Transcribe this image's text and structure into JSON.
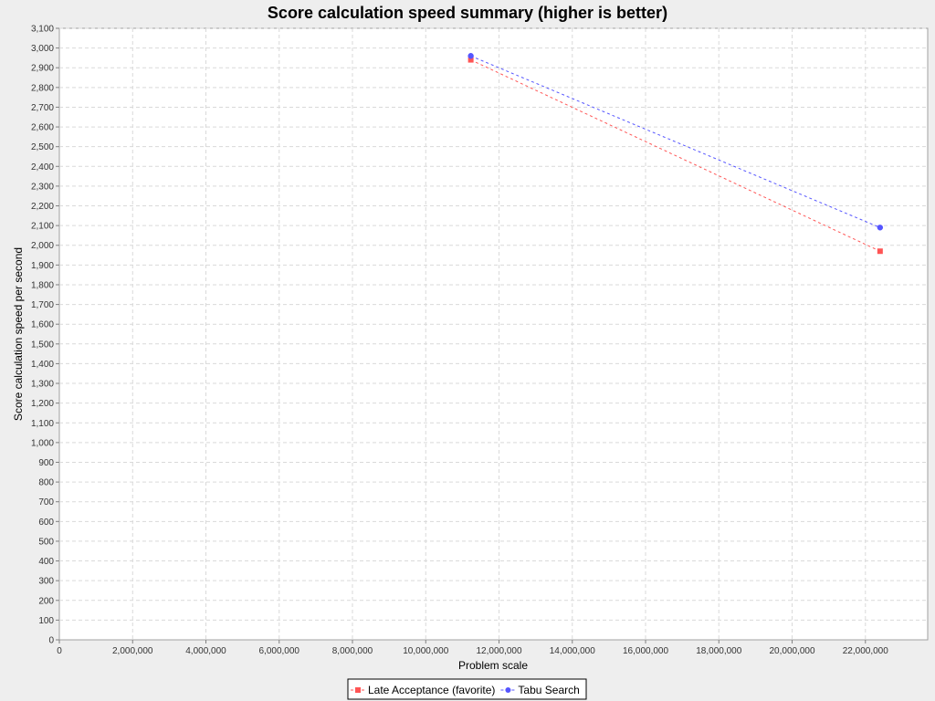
{
  "chart_data": {
    "type": "line",
    "title": "Score calculation speed summary (higher is better)",
    "xlabel": "Problem scale",
    "ylabel": "Score calculation speed per second",
    "xlim": [
      0,
      23700000
    ],
    "ylim": [
      0,
      3100
    ],
    "x_ticks": [
      0,
      2000000,
      4000000,
      6000000,
      8000000,
      10000000,
      12000000,
      14000000,
      16000000,
      18000000,
      20000000,
      22000000
    ],
    "x_tick_labels": [
      "0",
      "2,000,000",
      "4,000,000",
      "6,000,000",
      "8,000,000",
      "10,000,000",
      "12,000,000",
      "14,000,000",
      "16,000,000",
      "18,000,000",
      "20,000,000",
      "22,000,000"
    ],
    "y_ticks": [
      0,
      100,
      200,
      300,
      400,
      500,
      600,
      700,
      800,
      900,
      1000,
      1100,
      1200,
      1300,
      1400,
      1500,
      1600,
      1700,
      1800,
      1900,
      2000,
      2100,
      2200,
      2300,
      2400,
      2500,
      2600,
      2700,
      2800,
      2900,
      3000,
      3100
    ],
    "y_tick_labels": [
      "0",
      "100",
      "200",
      "300",
      "400",
      "500",
      "600",
      "700",
      "800",
      "900",
      "1,000",
      "1,100",
      "1,200",
      "1,300",
      "1,400",
      "1,500",
      "1,600",
      "1,700",
      "1,800",
      "1,900",
      "2,000",
      "2,100",
      "2,200",
      "2,300",
      "2,400",
      "2,500",
      "2,600",
      "2,700",
      "2,800",
      "2,900",
      "3,000",
      "3,100"
    ],
    "grid": true,
    "legend_position": "bottom",
    "series": [
      {
        "name": "Late Acceptance (favorite)",
        "color": "#ff5555",
        "marker": "square",
        "line_style": "dashed",
        "points": [
          {
            "x": 11230000,
            "y": 2940
          },
          {
            "x": 22400000,
            "y": 1970
          }
        ]
      },
      {
        "name": "Tabu Search",
        "color": "#5555ff",
        "marker": "circle",
        "line_style": "dashed",
        "points": [
          {
            "x": 11230000,
            "y": 2960
          },
          {
            "x": 22400000,
            "y": 2090
          }
        ]
      }
    ]
  }
}
